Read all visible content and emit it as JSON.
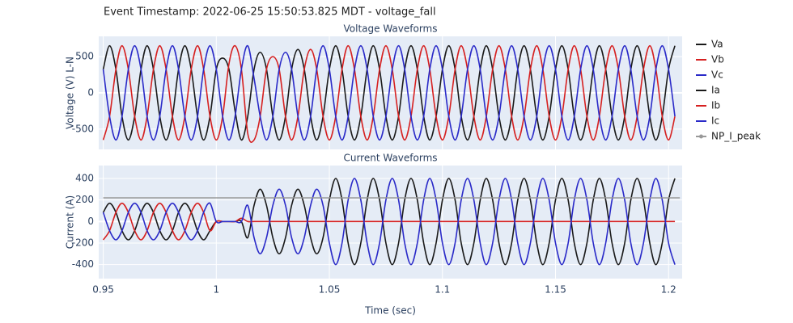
{
  "title": "Event Timestamp: 2022-06-25 15:50:53.825 MDT - voltage_fall",
  "chart_data": [
    {
      "type": "line",
      "title": "Voltage Waveforms",
      "ylabel": "Voltage (V) L-N",
      "xlim": [
        0.948,
        1.206
      ],
      "xticks": [
        0.95,
        1,
        1.05,
        1.1,
        1.15,
        1.2
      ],
      "ylim": [
        -780,
        780
      ],
      "yticks": [
        -500,
        0,
        500
      ],
      "grid": true,
      "x": [
        0.95,
        0.9528,
        0.9556,
        0.9583,
        0.9611,
        0.9639,
        0.9667,
        0.9694,
        0.9722,
        0.975,
        0.9778,
        0.9806,
        0.9833,
        0.9861,
        0.9889,
        0.9917,
        0.9944,
        0.9972,
        1.0,
        1.0028,
        1.0056,
        1.0083,
        1.0111,
        1.0139,
        1.0167,
        1.0194,
        1.0222,
        1.025,
        1.0278,
        1.0306,
        1.0333,
        1.0361,
        1.0389,
        1.0417,
        1.0444,
        1.0472,
        1.05,
        1.0528,
        1.0556,
        1.0583,
        1.0611,
        1.0639,
        1.0667,
        1.0694,
        1.0722,
        1.075,
        1.0778,
        1.0806,
        1.0833,
        1.0861,
        1.0889,
        1.0917,
        1.0944,
        1.0972,
        1.1,
        1.1028,
        1.1056,
        1.1083,
        1.1111,
        1.1139,
        1.1167,
        1.1194,
        1.1222,
        1.125,
        1.1278,
        1.1306,
        1.1333,
        1.1361,
        1.1389,
        1.1417,
        1.1444,
        1.1472,
        1.15,
        1.1528,
        1.1556,
        1.1583,
        1.1611,
        1.1639,
        1.1667,
        1.1694,
        1.1722,
        1.175,
        1.1778,
        1.1806,
        1.1833,
        1.1861,
        1.1889,
        1.1917,
        1.1944,
        1.1972,
        1.2,
        1.2028
      ],
      "series": [
        {
          "name": "Va",
          "color": "#1a1a1a",
          "values": [
            325,
            650,
            325,
            -325,
            -650,
            -325,
            325,
            650,
            325,
            -325,
            -650,
            -325,
            325,
            650,
            325,
            -325,
            -650,
            -325,
            325,
            480,
            325,
            -250,
            -650,
            -325,
            325,
            560,
            325,
            -325,
            -650,
            -325,
            325,
            600,
            325,
            -325,
            -650,
            -325,
            325,
            650,
            325,
            -325,
            -650,
            -325,
            325,
            650,
            325,
            -325,
            -650,
            -325,
            325,
            650,
            325,
            -325,
            -650,
            -325,
            325,
            650,
            325,
            -325,
            -650,
            -325,
            325,
            650,
            325,
            -325,
            -650,
            -325,
            325,
            650,
            325,
            -325,
            -650,
            -325,
            325,
            650,
            325,
            -325,
            -650,
            -325,
            325,
            650,
            325,
            -325,
            -650,
            -325,
            325,
            650,
            325,
            -325,
            -650,
            -325,
            325,
            650
          ]
        },
        {
          "name": "Vb",
          "color": "#d62020",
          "values": [
            -650,
            -325,
            325,
            650,
            325,
            -325,
            -650,
            -325,
            325,
            650,
            325,
            -325,
            -650,
            -325,
            325,
            650,
            325,
            -325,
            -650,
            -325,
            400,
            650,
            325,
            -560,
            -650,
            -325,
            325,
            500,
            325,
            -325,
            -650,
            -325,
            325,
            600,
            325,
            -325,
            -650,
            -325,
            325,
            650,
            325,
            -325,
            -650,
            -325,
            325,
            650,
            325,
            -325,
            -650,
            -325,
            325,
            650,
            325,
            -325,
            -650,
            -325,
            325,
            650,
            325,
            -325,
            -650,
            -325,
            325,
            650,
            325,
            -325,
            -650,
            -325,
            325,
            650,
            325,
            -325,
            -650,
            -325,
            325,
            650,
            325,
            -325,
            -650,
            -325,
            325,
            650,
            325,
            -325,
            -650,
            -325,
            325,
            650,
            325,
            -325,
            -650,
            -325
          ]
        },
        {
          "name": "Vc",
          "color": "#2a2ac8",
          "values": [
            325,
            -325,
            -650,
            -325,
            325,
            650,
            325,
            -325,
            -650,
            -325,
            325,
            650,
            325,
            -325,
            -650,
            -325,
            325,
            650,
            325,
            -325,
            -650,
            -325,
            325,
            650,
            200,
            -325,
            -650,
            -325,
            325,
            560,
            325,
            -325,
            -650,
            -325,
            325,
            650,
            325,
            -325,
            -650,
            -325,
            325,
            650,
            325,
            -325,
            -650,
            -325,
            325,
            650,
            325,
            -325,
            -650,
            -325,
            325,
            650,
            325,
            -325,
            -650,
            -325,
            325,
            650,
            325,
            -325,
            -650,
            -325,
            325,
            650,
            325,
            -325,
            -650,
            -325,
            325,
            650,
            325,
            -325,
            -650,
            -325,
            325,
            650,
            325,
            -325,
            -650,
            -325,
            325,
            650,
            325,
            -325,
            -650,
            -325,
            325,
            650,
            325,
            -325
          ]
        }
      ]
    },
    {
      "type": "line",
      "title": "Current Waveforms",
      "ylabel": "Current (A)",
      "xlabel": "Time (sec)",
      "xlim": [
        0.948,
        1.206
      ],
      "xticks": [
        0.95,
        1,
        1.05,
        1.1,
        1.15,
        1.2
      ],
      "ylim": [
        -530,
        520
      ],
      "yticks": [
        -400,
        -200,
        0,
        200,
        400
      ],
      "grid": true,
      "x": [
        0.95,
        0.9528,
        0.9556,
        0.9583,
        0.9611,
        0.9639,
        0.9667,
        0.9694,
        0.9722,
        0.975,
        0.9778,
        0.9806,
        0.9833,
        0.9861,
        0.9889,
        0.9917,
        0.9944,
        0.9972,
        1.0,
        1.0028,
        1.0056,
        1.0083,
        1.0111,
        1.0139,
        1.0167,
        1.0194,
        1.0222,
        1.025,
        1.0278,
        1.0306,
        1.0333,
        1.0361,
        1.0389,
        1.0417,
        1.0444,
        1.0472,
        1.05,
        1.0528,
        1.0556,
        1.0583,
        1.0611,
        1.0639,
        1.0667,
        1.0694,
        1.0722,
        1.075,
        1.0778,
        1.0806,
        1.0833,
        1.0861,
        1.0889,
        1.0917,
        1.0944,
        1.0972,
        1.1,
        1.1028,
        1.1056,
        1.1083,
        1.1111,
        1.1139,
        1.1167,
        1.1194,
        1.1222,
        1.125,
        1.1278,
        1.1306,
        1.1333,
        1.1361,
        1.1389,
        1.1417,
        1.1444,
        1.1472,
        1.15,
        1.1528,
        1.1556,
        1.1583,
        1.1611,
        1.1639,
        1.1667,
        1.1694,
        1.1722,
        1.175,
        1.1778,
        1.1806,
        1.1833,
        1.1861,
        1.1889,
        1.1917,
        1.1944,
        1.1972,
        1.2,
        1.2028
      ],
      "series": [
        {
          "name": "Ia",
          "color": "#1a1a1a",
          "values": [
            85,
            170,
            85,
            -85,
            -170,
            -85,
            85,
            170,
            85,
            -85,
            -170,
            -85,
            85,
            170,
            85,
            -85,
            -170,
            -85,
            0,
            0,
            0,
            0,
            0,
            -150,
            150,
            300,
            150,
            -150,
            -300,
            -150,
            150,
            300,
            150,
            -150,
            -300,
            -150,
            200,
            400,
            200,
            -200,
            -400,
            -200,
            200,
            400,
            200,
            -200,
            -400,
            -200,
            200,
            400,
            200,
            -200,
            -400,
            -200,
            200,
            400,
            200,
            -200,
            -400,
            -200,
            200,
            400,
            200,
            -200,
            -400,
            -200,
            200,
            400,
            200,
            -200,
            -400,
            -200,
            200,
            400,
            200,
            -200,
            -400,
            -200,
            200,
            400,
            200,
            -200,
            -400,
            -200,
            200,
            400,
            200,
            -200,
            -400,
            -200,
            200,
            400
          ]
        },
        {
          "name": "Ib",
          "color": "#d62020",
          "values": [
            -170,
            -85,
            85,
            170,
            85,
            -85,
            -170,
            -85,
            85,
            170,
            85,
            -85,
            -170,
            -85,
            85,
            170,
            85,
            -85,
            0,
            0,
            0,
            0,
            30,
            0,
            0,
            0,
            0,
            0,
            0,
            0,
            0,
            0,
            0,
            0,
            0,
            0,
            0,
            0,
            0,
            0,
            0,
            0,
            0,
            0,
            0,
            0,
            0,
            0,
            0,
            0,
            0,
            0,
            0,
            0,
            0,
            0,
            0,
            0,
            0,
            0,
            0,
            0,
            0,
            0,
            0,
            0,
            0,
            0,
            0,
            0,
            0,
            0,
            0,
            0,
            0,
            0,
            0,
            0,
            0,
            0,
            0,
            0,
            0,
            0,
            0,
            0,
            0,
            0,
            0,
            0,
            0,
            0
          ]
        },
        {
          "name": "Ic",
          "color": "#2a2ac8",
          "values": [
            85,
            -85,
            -170,
            -85,
            85,
            170,
            85,
            -85,
            -170,
            -85,
            85,
            170,
            85,
            -85,
            -170,
            -85,
            85,
            170,
            0,
            0,
            0,
            0,
            0,
            150,
            -150,
            -300,
            -150,
            150,
            300,
            150,
            -150,
            -300,
            -150,
            150,
            300,
            150,
            -200,
            -400,
            -200,
            200,
            400,
            200,
            -200,
            -400,
            -200,
            200,
            400,
            200,
            -200,
            -400,
            -200,
            200,
            400,
            200,
            -200,
            -400,
            -200,
            200,
            400,
            200,
            -200,
            -400,
            -200,
            200,
            400,
            200,
            -200,
            -400,
            -200,
            200,
            400,
            200,
            -200,
            -400,
            -200,
            200,
            400,
            200,
            -200,
            -400,
            -200,
            200,
            400,
            200,
            -200,
            -400,
            -200,
            200,
            400,
            200,
            -200,
            -400
          ]
        },
        {
          "name": "NP_I_peak",
          "color": "#999999",
          "marker": true,
          "x": [
            0.95,
            1.205
          ],
          "values": [
            220,
            220
          ]
        }
      ]
    }
  ]
}
